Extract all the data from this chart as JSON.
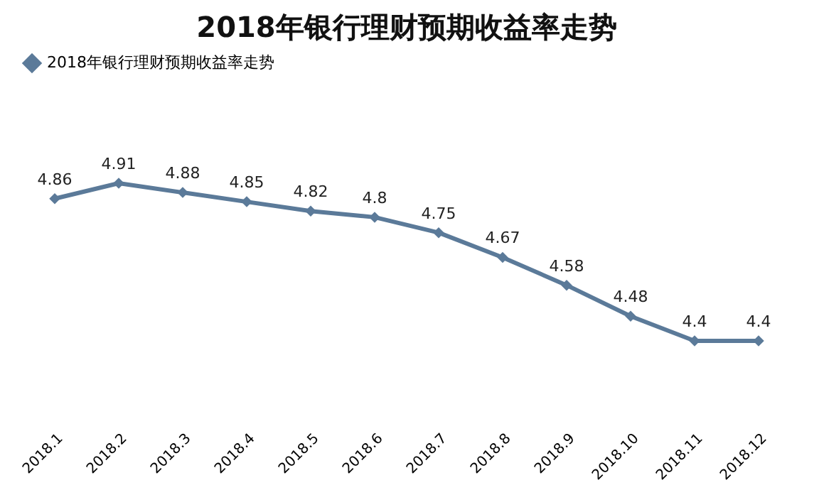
{
  "chart_data": {
    "type": "line",
    "title": "2018年银行理财预期收益率走势",
    "categories": [
      "2018.1",
      "2018.2",
      "2018.3",
      "2018.4",
      "2018.5",
      "2018.6",
      "2018.7",
      "2018.8",
      "2018.9",
      "2018.10",
      "2018.11",
      "2018.12"
    ],
    "series": [
      {
        "name": "2018年银行理财预期收益率走势",
        "color": "#5b7a99",
        "values": [
          4.86,
          4.91,
          4.88,
          4.85,
          4.82,
          4.8,
          4.75,
          4.67,
          4.58,
          4.48,
          4.4,
          4.4
        ]
      }
    ],
    "tick_labels": "x",
    "grid": false,
    "legend": "top",
    "marker": "diamond",
    "line_style": "solid",
    "data_labels": true
  }
}
